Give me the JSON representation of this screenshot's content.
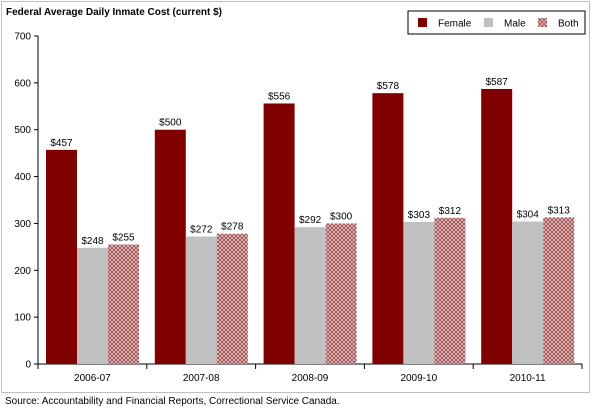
{
  "chart_data": {
    "type": "bar",
    "title": "Federal Average Daily Inmate Cost  (current $)",
    "xlabel": "",
    "ylabel": "",
    "ylim": [
      0,
      700
    ],
    "yticks": [
      0,
      100,
      200,
      300,
      400,
      500,
      600,
      700
    ],
    "categories": [
      "2006-07",
      "2007-08",
      "2008-09",
      "2009-10",
      "2010-11"
    ],
    "series": [
      {
        "name": "Female",
        "values": [
          457,
          500,
          556,
          578,
          587
        ],
        "labels": [
          "$457",
          "$500",
          "$556",
          "$578",
          "$587"
        ],
        "color": "#800000",
        "pattern": "solid"
      },
      {
        "name": "Male",
        "values": [
          248,
          272,
          292,
          303,
          304
        ],
        "labels": [
          "$248",
          "$272",
          "$292",
          "$303",
          "$304"
        ],
        "color": "#c0c0c0",
        "pattern": "solid"
      },
      {
        "name": "Both",
        "values": [
          255,
          278,
          300,
          312,
          313
        ],
        "labels": [
          "$255",
          "$278",
          "$300",
          "$312",
          "$313"
        ],
        "color": "#c88a8a",
        "pattern": "crosshatch"
      }
    ],
    "legend_position": "top-right",
    "grid": false
  },
  "source_text": "Source: Accountability and Financial Reports, Correctional Service Canada."
}
